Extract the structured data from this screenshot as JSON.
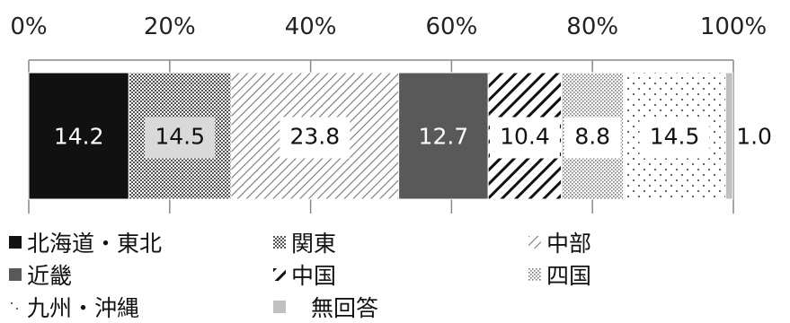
{
  "chart_data": {
    "type": "bar",
    "orientation": "horizontal-stacked",
    "x_ticks": [
      "0%",
      "20%",
      "40%",
      "60%",
      "80%",
      "100%"
    ],
    "xlim": [
      0,
      100
    ],
    "legend_position": "bottom",
    "series": [
      {
        "name": "北海道・東北",
        "value": 14.2,
        "label": "14.2",
        "color": "#111111",
        "pattern": "solid-black"
      },
      {
        "name": "関東",
        "value": 14.5,
        "label": "14.5",
        "color": "#8a8a8a",
        "pattern": "checker"
      },
      {
        "name": "中部",
        "value": 23.8,
        "label": "23.8",
        "color": "#777777",
        "pattern": "light-diagonal"
      },
      {
        "name": "近畿",
        "value": 12.7,
        "label": "12.7",
        "color": "#595959",
        "pattern": "solid-gray"
      },
      {
        "name": "中国",
        "value": 10.4,
        "label": "10.4",
        "color": "#111111",
        "pattern": "wide-diagonal"
      },
      {
        "name": "四国",
        "value": 8.8,
        "label": "8.8",
        "color": "#888888",
        "pattern": "fine-dots"
      },
      {
        "name": "九州・沖縄",
        "value": 14.5,
        "label": "14.5",
        "color": "#777777",
        "pattern": "sparse-dots"
      },
      {
        "name": "無回答",
        "value": 1.0,
        "label": "1.0",
        "color": "#bfbfbf",
        "pattern": "solid-lightgray"
      }
    ]
  }
}
